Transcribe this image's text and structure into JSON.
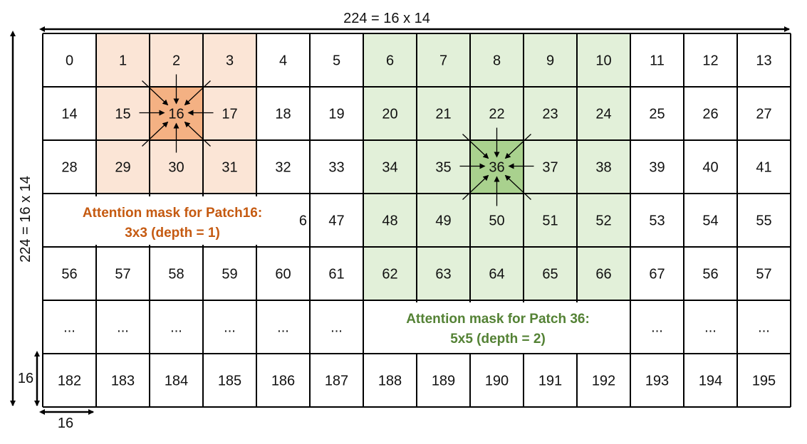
{
  "dimensions": {
    "width_label": "224 = 16 x 14",
    "height_label": "224 = 16 x 14",
    "patch_width_label": "16",
    "patch_height_label": "16"
  },
  "grid": {
    "rows": [
      [
        "0",
        "1",
        "2",
        "3",
        "4",
        "5",
        "6",
        "7",
        "8",
        "9",
        "10",
        "11",
        "12",
        "13"
      ],
      [
        "14",
        "15",
        "16",
        "17",
        "18",
        "19",
        "20",
        "21",
        "22",
        "23",
        "24",
        "25",
        "26",
        "27"
      ],
      [
        "28",
        "29",
        "30",
        "31",
        "32",
        "33",
        "34",
        "35",
        "36",
        "37",
        "38",
        "39",
        "40",
        "41"
      ],
      [
        "",
        "",
        "",
        "",
        "",
        "47",
        "48",
        "49",
        "50",
        "51",
        "52",
        "53",
        "54",
        "55"
      ],
      [
        "56",
        "57",
        "58",
        "59",
        "60",
        "61",
        "62",
        "63",
        "64",
        "65",
        "66",
        "67",
        "56",
        "57"
      ],
      [
        "...",
        "...",
        "...",
        "...",
        "...",
        "...",
        "",
        "",
        "",
        "",
        "",
        "...",
        "...",
        "..."
      ],
      [
        "182",
        "183",
        "184",
        "185",
        "186",
        "187",
        "188",
        "189",
        "190",
        "191",
        "192",
        "193",
        "194",
        "195"
      ]
    ],
    "partial_cell_text": "6"
  },
  "masks": [
    {
      "caption_line1": "Attention mask for Patch16:",
      "caption_line2": "3x3 (depth = 1)",
      "center_color": "#f4b183",
      "region_color": "#fbe5d6",
      "caption_color": "#c55a11"
    },
    {
      "caption_line1": "Attention mask for Patch 36:",
      "caption_line2": "5x5 (depth = 2)",
      "center_color": "#a9d18e",
      "region_color": "#e2f0d9",
      "caption_color": "#548235"
    }
  ]
}
